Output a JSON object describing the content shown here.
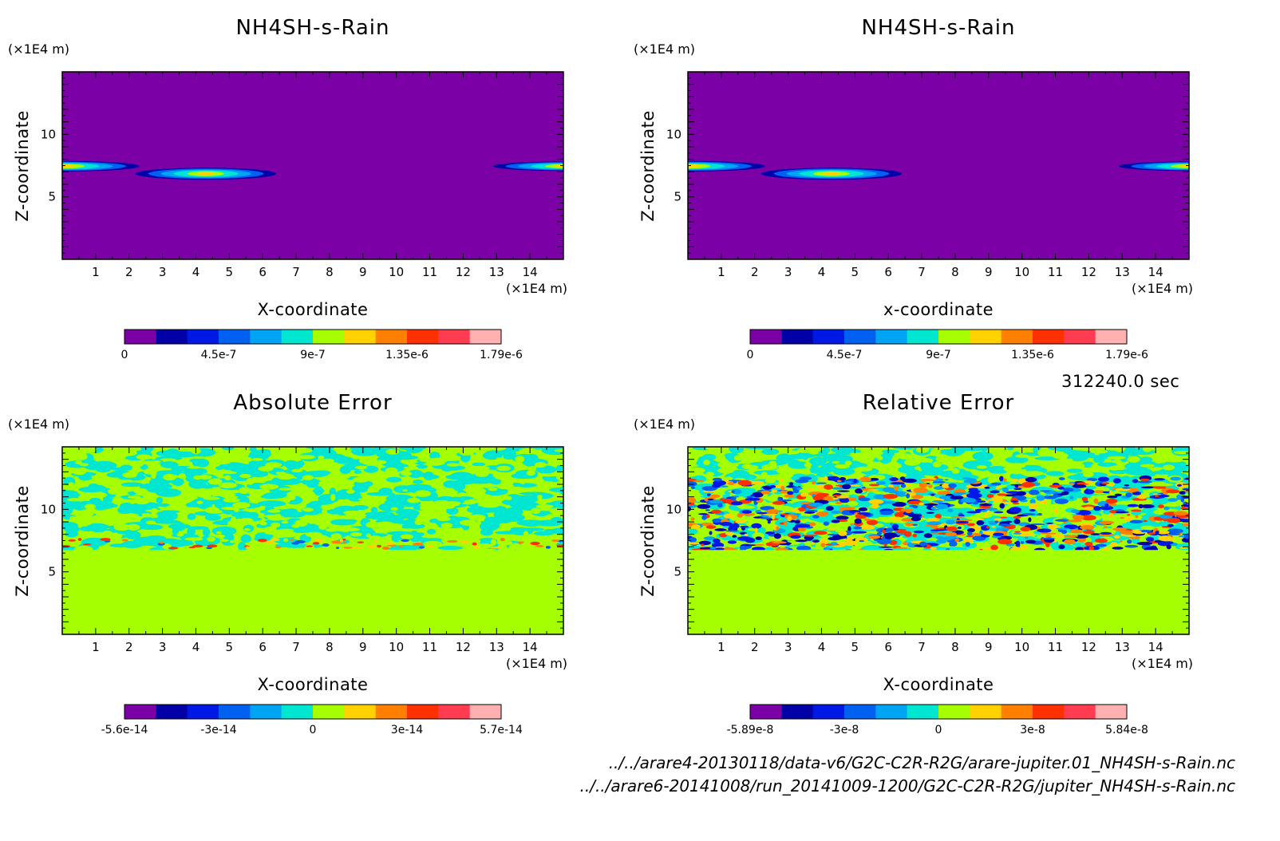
{
  "time_label": "312240.0 sec",
  "files": [
    "../../arare4-20130118/data-v6/G2C-C2R-R2G/arare-jupiter.01_NH4SH-s-Rain.nc",
    "../../arare6-20141008/run_20141009-1200/G2C-C2R-R2G/jupiter_NH4SH-s-Rain.nc"
  ],
  "colors": {
    "levels": [
      "#7b00a6",
      "#0000a6",
      "#0018e6",
      "#0060f0",
      "#00a4f4",
      "#00e6d0",
      "#a6ff00",
      "#ffd200",
      "#ff8000",
      "#ff3000",
      "#ff3c50",
      "#ffb0b0"
    ]
  },
  "chart_data": [
    {
      "type": "heatmap",
      "title": "NH4SH-s-Rain",
      "xlabel": "X-coordinate",
      "ylabel": "Z-coordinate",
      "x_unit": "(×1E4 m)",
      "y_unit": "(×1E4 m)",
      "xlim": [
        0,
        15
      ],
      "ylim": [
        0,
        15
      ],
      "x_ticks": [
        "1",
        "2",
        "3",
        "4",
        "5",
        "6",
        "7",
        "8",
        "9",
        "10",
        "11",
        "12",
        "13",
        "14"
      ],
      "y_ticks": [
        "5",
        "10"
      ],
      "colorbar_ticks": [
        "0",
        "4.5e-7",
        "9e-7",
        "1.35e-6",
        "1.79e-6"
      ],
      "field": "rain_band"
    },
    {
      "type": "heatmap",
      "title": "NH4SH-s-Rain",
      "xlabel": "x-coordinate",
      "ylabel": "Z-coordinate",
      "x_unit": "(×1E4 m)",
      "y_unit": "(×1E4 m)",
      "xlim": [
        0,
        15
      ],
      "ylim": [
        0,
        15
      ],
      "x_ticks": [
        "1",
        "2",
        "3",
        "4",
        "5",
        "6",
        "7",
        "8",
        "9",
        "10",
        "11",
        "12",
        "13",
        "14"
      ],
      "y_ticks": [
        "5",
        "10"
      ],
      "colorbar_ticks": [
        "0",
        "4.5e-7",
        "9e-7",
        "1.35e-6",
        "1.79e-6"
      ],
      "field": "rain_band"
    },
    {
      "type": "heatmap",
      "title": "Absolute Error",
      "xlabel": "X-coordinate",
      "ylabel": "Z-coordinate",
      "x_unit": "(×1E4 m)",
      "y_unit": "(×1E4 m)",
      "xlim": [
        0,
        15
      ],
      "ylim": [
        0,
        15
      ],
      "x_ticks": [
        "1",
        "2",
        "3",
        "4",
        "5",
        "6",
        "7",
        "8",
        "9",
        "10",
        "11",
        "12",
        "13",
        "14"
      ],
      "y_ticks": [
        "5",
        "10"
      ],
      "colorbar_ticks": [
        "-5.6e-14",
        "-3e-14",
        "0",
        "3e-14",
        "5.7e-14"
      ],
      "field": "abs_error"
    },
    {
      "type": "heatmap",
      "title": "Relative Error",
      "xlabel": "X-coordinate",
      "ylabel": "Z-coordinate",
      "x_unit": "(×1E4 m)",
      "y_unit": "(×1E4 m)",
      "xlim": [
        0,
        15
      ],
      "ylim": [
        0,
        15
      ],
      "x_ticks": [
        "1",
        "2",
        "3",
        "4",
        "5",
        "6",
        "7",
        "8",
        "9",
        "10",
        "11",
        "12",
        "13",
        "14"
      ],
      "y_ticks": [
        "5",
        "10"
      ],
      "colorbar_ticks": [
        "-5.89e-8",
        "-3e-8",
        "0",
        "3e-8",
        "5.84e-8"
      ],
      "field": "rel_error"
    }
  ]
}
